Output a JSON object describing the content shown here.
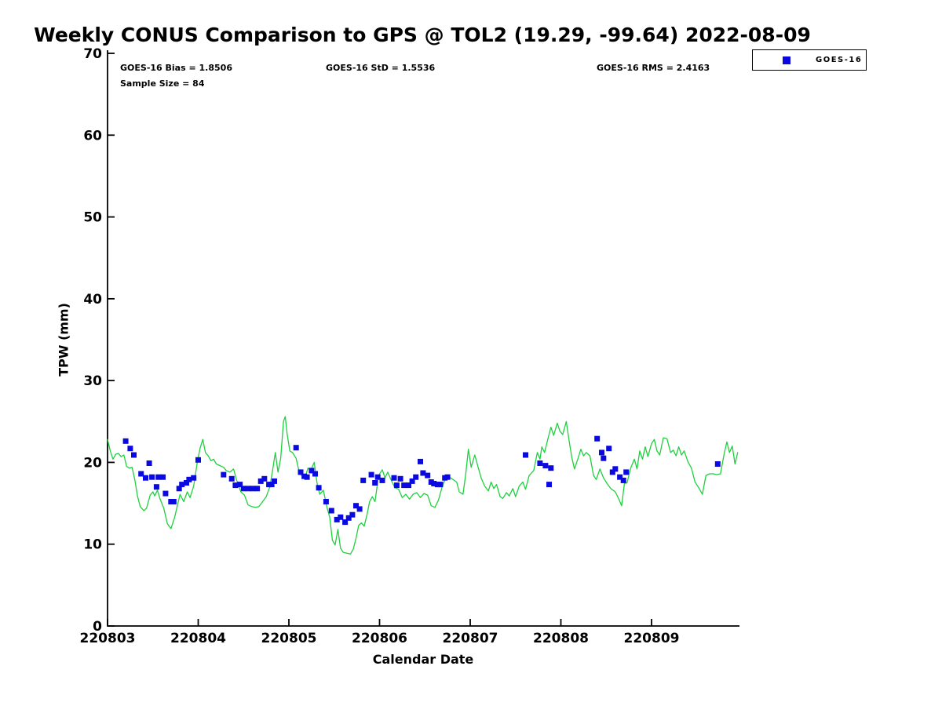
{
  "title": "Weekly CONUS Comparison to GPS @ TOL2 (19.29, -99.64) 2022-08-09",
  "stats": {
    "bias": "GOES-16 Bias = 1.8506",
    "std": "GOES-16 StD = 1.5536",
    "rms": "GOES-16 RMS = 2.4163",
    "sample_size": "Sample Size = 84"
  },
  "axes": {
    "xlabel": "Calendar Date",
    "ylabel": "TPW (mm)"
  },
  "legend": {
    "label": "GOES-16",
    "marker": "filled-square",
    "position": "top-right-outside"
  },
  "colors": {
    "background": "#ffffff",
    "axis": "#000000",
    "gps_line": "#1fd03e",
    "goes16_marker": "#0a0ae0"
  },
  "chart_data": {
    "type": "line",
    "title": "Weekly CONUS Comparison to GPS @ TOL2 (19.29, -99.64) 2022-08-09",
    "xlabel": "Calendar Date",
    "ylabel": "TPW (mm)",
    "x_units": "days since 220803",
    "xlim": [
      0,
      6.97
    ],
    "ylim": [
      0,
      70
    ],
    "grid": false,
    "legend_position": "top-right-outside",
    "annotations": [
      "GOES-16 Bias = 1.8506",
      "GOES-16 StD = 1.5536",
      "GOES-16 RMS = 2.4163",
      "Sample Size = 84"
    ],
    "x_ticks": {
      "positions": [
        0,
        1,
        2,
        3,
        4,
        5,
        6
      ],
      "labels": [
        "220803",
        "220804",
        "220805",
        "220806",
        "220807",
        "220808",
        "220809"
      ]
    },
    "y_ticks": [
      0,
      10,
      20,
      30,
      40,
      50,
      60,
      70
    ],
    "series": [
      {
        "name": "GPS",
        "type": "line",
        "color": "#1fd03e",
        "points": [
          [
            0.0,
            22.8
          ],
          [
            0.03,
            21.4
          ],
          [
            0.06,
            20.4
          ],
          [
            0.09,
            21.0
          ],
          [
            0.12,
            21.1
          ],
          [
            0.15,
            20.7
          ],
          [
            0.18,
            20.9
          ],
          [
            0.21,
            19.5
          ],
          [
            0.24,
            19.3
          ],
          [
            0.27,
            19.4
          ],
          [
            0.3,
            17.9
          ],
          [
            0.33,
            15.9
          ],
          [
            0.36,
            14.6
          ],
          [
            0.4,
            14.1
          ],
          [
            0.43,
            14.4
          ],
          [
            0.47,
            16.0
          ],
          [
            0.5,
            16.4
          ],
          [
            0.52,
            15.9
          ],
          [
            0.55,
            16.6
          ],
          [
            0.58,
            15.5
          ],
          [
            0.62,
            14.4
          ],
          [
            0.66,
            12.5
          ],
          [
            0.7,
            11.9
          ],
          [
            0.74,
            13.3
          ],
          [
            0.77,
            14.7
          ],
          [
            0.8,
            16.1
          ],
          [
            0.84,
            15.2
          ],
          [
            0.88,
            16.4
          ],
          [
            0.91,
            15.7
          ],
          [
            0.95,
            17.1
          ],
          [
            0.99,
            20.0
          ],
          [
            1.02,
            21.7
          ],
          [
            1.05,
            22.8
          ],
          [
            1.08,
            21.2
          ],
          [
            1.11,
            20.8
          ],
          [
            1.14,
            20.2
          ],
          [
            1.17,
            20.4
          ],
          [
            1.2,
            19.8
          ],
          [
            1.24,
            19.6
          ],
          [
            1.28,
            19.4
          ],
          [
            1.31,
            19.0
          ],
          [
            1.35,
            18.8
          ],
          [
            1.39,
            19.2
          ],
          [
            1.43,
            17.6
          ],
          [
            1.47,
            16.4
          ],
          [
            1.51,
            16.0
          ],
          [
            1.55,
            14.8
          ],
          [
            1.59,
            14.6
          ],
          [
            1.63,
            14.5
          ],
          [
            1.67,
            14.6
          ],
          [
            1.71,
            15.2
          ],
          [
            1.75,
            15.8
          ],
          [
            1.79,
            17.0
          ],
          [
            1.82,
            19.0
          ],
          [
            1.85,
            21.2
          ],
          [
            1.88,
            18.8
          ],
          [
            1.91,
            20.5
          ],
          [
            1.94,
            25.0
          ],
          [
            1.96,
            25.6
          ],
          [
            1.98,
            23.5
          ],
          [
            2.01,
            21.4
          ],
          [
            2.04,
            21.2
          ],
          [
            2.08,
            20.5
          ],
          [
            2.11,
            19.0
          ],
          [
            2.14,
            18.4
          ],
          [
            2.18,
            18.2
          ],
          [
            2.21,
            19.3
          ],
          [
            2.24,
            19.0
          ],
          [
            2.28,
            20.0
          ],
          [
            2.31,
            17.5
          ],
          [
            2.34,
            16.1
          ],
          [
            2.38,
            16.6
          ],
          [
            2.42,
            14.5
          ],
          [
            2.45,
            13.3
          ],
          [
            2.48,
            10.5
          ],
          [
            2.51,
            9.9
          ],
          [
            2.54,
            11.8
          ],
          [
            2.57,
            9.5
          ],
          [
            2.6,
            9.0
          ],
          [
            2.64,
            8.9
          ],
          [
            2.68,
            8.8
          ],
          [
            2.71,
            9.4
          ],
          [
            2.74,
            10.7
          ],
          [
            2.77,
            12.3
          ],
          [
            2.8,
            12.6
          ],
          [
            2.83,
            12.2
          ],
          [
            2.86,
            13.5
          ],
          [
            2.89,
            15.2
          ],
          [
            2.92,
            15.8
          ],
          [
            2.95,
            15.2
          ],
          [
            2.99,
            18.4
          ],
          [
            3.03,
            19.1
          ],
          [
            3.06,
            18.1
          ],
          [
            3.09,
            18.8
          ],
          [
            3.13,
            17.8
          ],
          [
            3.17,
            16.9
          ],
          [
            3.21,
            16.7
          ],
          [
            3.25,
            15.7
          ],
          [
            3.29,
            16.1
          ],
          [
            3.33,
            15.5
          ],
          [
            3.37,
            16.1
          ],
          [
            3.41,
            16.3
          ],
          [
            3.45,
            15.7
          ],
          [
            3.49,
            16.2
          ],
          [
            3.53,
            16.0
          ],
          [
            3.57,
            14.7
          ],
          [
            3.61,
            14.5
          ],
          [
            3.65,
            15.4
          ],
          [
            3.69,
            17.0
          ],
          [
            3.73,
            18.1
          ],
          [
            3.77,
            18.2
          ],
          [
            3.81,
            17.9
          ],
          [
            3.85,
            17.6
          ],
          [
            3.88,
            16.4
          ],
          [
            3.92,
            16.1
          ],
          [
            3.95,
            18.5
          ],
          [
            3.98,
            21.6
          ],
          [
            4.01,
            19.4
          ],
          [
            4.05,
            20.9
          ],
          [
            4.09,
            19.3
          ],
          [
            4.12,
            18.1
          ],
          [
            4.16,
            17.1
          ],
          [
            4.2,
            16.5
          ],
          [
            4.23,
            17.6
          ],
          [
            4.26,
            16.8
          ],
          [
            4.29,
            17.3
          ],
          [
            4.33,
            15.8
          ],
          [
            4.36,
            15.6
          ],
          [
            4.4,
            16.3
          ],
          [
            4.43,
            15.9
          ],
          [
            4.47,
            16.8
          ],
          [
            4.5,
            15.8
          ],
          [
            4.54,
            17.1
          ],
          [
            4.58,
            17.6
          ],
          [
            4.61,
            16.7
          ],
          [
            4.65,
            18.4
          ],
          [
            4.7,
            19.0
          ],
          [
            4.74,
            21.2
          ],
          [
            4.77,
            20.4
          ],
          [
            4.79,
            21.9
          ],
          [
            4.82,
            21.2
          ],
          [
            4.86,
            23.0
          ],
          [
            4.89,
            24.3
          ],
          [
            4.92,
            23.3
          ],
          [
            4.96,
            24.8
          ],
          [
            4.99,
            23.8
          ],
          [
            5.02,
            23.4
          ],
          [
            5.06,
            25.0
          ],
          [
            5.09,
            22.7
          ],
          [
            5.12,
            20.6
          ],
          [
            5.15,
            19.2
          ],
          [
            5.19,
            20.5
          ],
          [
            5.22,
            21.6
          ],
          [
            5.25,
            20.8
          ],
          [
            5.28,
            21.2
          ],
          [
            5.32,
            20.8
          ],
          [
            5.36,
            18.4
          ],
          [
            5.39,
            17.9
          ],
          [
            5.43,
            19.2
          ],
          [
            5.47,
            18.1
          ],
          [
            5.51,
            17.4
          ],
          [
            5.55,
            16.8
          ],
          [
            5.6,
            16.4
          ],
          [
            5.64,
            15.5
          ],
          [
            5.67,
            14.7
          ],
          [
            5.7,
            17.4
          ],
          [
            5.73,
            17.5
          ],
          [
            5.77,
            19.3
          ],
          [
            5.81,
            20.4
          ],
          [
            5.84,
            19.2
          ],
          [
            5.87,
            21.4
          ],
          [
            5.9,
            20.4
          ],
          [
            5.93,
            21.9
          ],
          [
            5.96,
            20.7
          ],
          [
            6.0,
            22.3
          ],
          [
            6.03,
            22.8
          ],
          [
            6.06,
            21.4
          ],
          [
            6.09,
            20.9
          ],
          [
            6.13,
            23.0
          ],
          [
            6.17,
            22.9
          ],
          [
            6.21,
            21.2
          ],
          [
            6.24,
            21.5
          ],
          [
            6.27,
            20.8
          ],
          [
            6.3,
            21.9
          ],
          [
            6.33,
            20.9
          ],
          [
            6.36,
            21.4
          ],
          [
            6.4,
            20.1
          ],
          [
            6.44,
            19.3
          ],
          [
            6.48,
            17.6
          ],
          [
            6.52,
            16.9
          ],
          [
            6.56,
            16.1
          ],
          [
            6.6,
            18.4
          ],
          [
            6.64,
            18.6
          ],
          [
            6.68,
            18.6
          ],
          [
            6.72,
            18.5
          ],
          [
            6.76,
            18.6
          ],
          [
            6.8,
            21.0
          ],
          [
            6.83,
            22.5
          ],
          [
            6.86,
            21.2
          ],
          [
            6.89,
            22.0
          ],
          [
            6.92,
            19.8
          ],
          [
            6.95,
            21.2
          ]
        ]
      },
      {
        "name": "GOES-16",
        "type": "scatter",
        "marker": "square",
        "color": "#0a0ae0",
        "sample_size": 84,
        "points": [
          [
            0.2,
            22.6
          ],
          [
            0.25,
            21.7
          ],
          [
            0.29,
            20.9
          ],
          [
            0.37,
            18.6
          ],
          [
            0.42,
            18.1
          ],
          [
            0.46,
            19.9
          ],
          [
            0.49,
            18.2
          ],
          [
            0.54,
            17.0
          ],
          [
            0.56,
            18.2
          ],
          [
            0.61,
            18.2
          ],
          [
            0.64,
            16.2
          ],
          [
            0.7,
            15.2
          ],
          [
            0.73,
            15.2
          ],
          [
            0.79,
            16.8
          ],
          [
            0.82,
            17.3
          ],
          [
            0.87,
            17.5
          ],
          [
            0.9,
            17.9
          ],
          [
            0.95,
            18.1
          ],
          [
            1.0,
            20.3
          ],
          [
            1.28,
            18.5
          ],
          [
            1.37,
            18.0
          ],
          [
            1.41,
            17.2
          ],
          [
            1.46,
            17.3
          ],
          [
            1.5,
            16.8
          ],
          [
            1.55,
            16.8
          ],
          [
            1.6,
            16.8
          ],
          [
            1.65,
            16.8
          ],
          [
            1.69,
            17.7
          ],
          [
            1.73,
            18.0
          ],
          [
            1.78,
            17.3
          ],
          [
            1.81,
            17.3
          ],
          [
            1.84,
            17.7
          ],
          [
            2.08,
            21.8
          ],
          [
            2.13,
            18.8
          ],
          [
            2.17,
            18.3
          ],
          [
            2.2,
            18.2
          ],
          [
            2.25,
            19.0
          ],
          [
            2.29,
            18.6
          ],
          [
            2.33,
            16.9
          ],
          [
            2.41,
            15.2
          ],
          [
            2.47,
            14.1
          ],
          [
            2.53,
            13.0
          ],
          [
            2.57,
            13.3
          ],
          [
            2.62,
            12.7
          ],
          [
            2.66,
            13.2
          ],
          [
            2.7,
            13.6
          ],
          [
            2.74,
            14.7
          ],
          [
            2.78,
            14.3
          ],
          [
            2.82,
            17.8
          ],
          [
            2.91,
            18.5
          ],
          [
            2.95,
            17.5
          ],
          [
            2.98,
            18.2
          ],
          [
            3.03,
            17.8
          ],
          [
            3.16,
            18.1
          ],
          [
            3.19,
            17.2
          ],
          [
            3.23,
            18.0
          ],
          [
            3.27,
            17.2
          ],
          [
            3.32,
            17.2
          ],
          [
            3.36,
            17.7
          ],
          [
            3.4,
            18.2
          ],
          [
            3.45,
            20.1
          ],
          [
            3.48,
            18.7
          ],
          [
            3.53,
            18.4
          ],
          [
            3.57,
            17.6
          ],
          [
            3.6,
            17.4
          ],
          [
            3.64,
            17.3
          ],
          [
            3.67,
            17.3
          ],
          [
            3.72,
            18.1
          ],
          [
            3.75,
            18.2
          ],
          [
            4.61,
            20.9
          ],
          [
            4.77,
            19.9
          ],
          [
            4.83,
            19.6
          ],
          [
            4.87,
            17.3
          ],
          [
            4.89,
            19.3
          ],
          [
            5.4,
            22.9
          ],
          [
            5.45,
            21.2
          ],
          [
            5.47,
            20.5
          ],
          [
            5.53,
            21.7
          ],
          [
            5.57,
            18.8
          ],
          [
            5.6,
            19.2
          ],
          [
            5.65,
            18.2
          ],
          [
            5.69,
            17.8
          ],
          [
            5.72,
            18.8
          ],
          [
            6.73,
            19.8
          ]
        ]
      }
    ]
  }
}
